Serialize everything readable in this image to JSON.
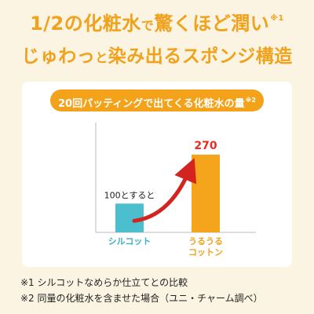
{
  "headline": {
    "line1_pre": "1/2の化粧水",
    "line1_mid": "で",
    "line1_post": "驚くほど潤い",
    "line1_sup": "※1",
    "line2_pre": "じゅわっ",
    "line2_mid": "と",
    "line2_post": "染み出るスポンジ構造"
  },
  "banner": {
    "text": "20回パッティングで出てくる化粧水の量",
    "sup": "※2"
  },
  "chart_data": {
    "type": "bar",
    "categories": [
      "シルコット",
      "うるうる\nコットン"
    ],
    "values": [
      100,
      270
    ],
    "bar_colors": [
      "#4cbfcf",
      "#f5a51c"
    ],
    "category_colors": [
      "#3ab1c4",
      "#f0a21c"
    ],
    "annotations": [
      "100とすると",
      "270"
    ],
    "value_label_colors": [
      "#222222",
      "#e52d24"
    ],
    "arrow_color": "#d4241f",
    "ylim": [
      0,
      300
    ],
    "grid": false
  },
  "footnotes": [
    "※1 シルコットなめらか仕立てとの比較",
    "※2 同量の化粧水を含ませた場合（ユニ・チャーム調べ）"
  ]
}
